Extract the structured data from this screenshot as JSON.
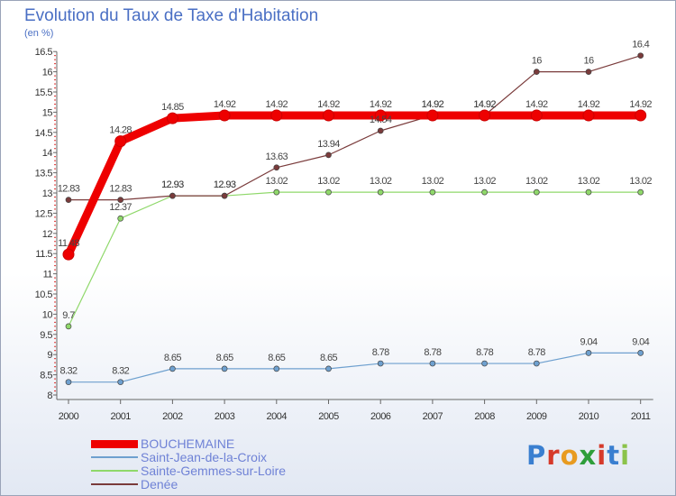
{
  "title": "Evolution du Taux de Taxe d'Habitation",
  "unit": "(en %)",
  "logo": {
    "text": "Proxiti",
    "letter_colors": [
      "#3a7fd0",
      "#d63a2a",
      "#e89b20",
      "#2e9e3a",
      "#d63a2a",
      "#3a7fd0",
      "#8bc34a"
    ]
  },
  "chart_data": {
    "type": "line",
    "title": "Evolution du Taux de Taxe d'Habitation",
    "ylabel": "(en %)",
    "xlabel": "",
    "ylim": [
      8,
      16.5
    ],
    "yticks": [
      "8",
      "8.5",
      "9",
      "9.5",
      "10",
      "10.5",
      "11",
      "11.5",
      "12",
      "12.5",
      "13",
      "13.5",
      "14",
      "14.5",
      "15",
      "15.5",
      "16",
      "16.5"
    ],
    "x": [
      "2000",
      "2001",
      "2002",
      "2003",
      "2004",
      "2005",
      "2006",
      "2007",
      "2008",
      "2009",
      "2010",
      "2011"
    ],
    "grid": false,
    "series": [
      {
        "name": "BOUCHEMAINE",
        "color": "#ee0000",
        "width": 9,
        "marker": 6,
        "values": [
          11.48,
          14.28,
          14.85,
          14.92,
          14.92,
          14.92,
          14.92,
          14.92,
          14.92,
          14.92,
          14.92,
          14.92
        ],
        "labels": [
          "11.48",
          "14.28",
          "14.85",
          "14.92",
          "14.92",
          "14.92",
          "14.92",
          "14.92",
          "14.92",
          "14.92",
          "14.92",
          "14.92"
        ]
      },
      {
        "name": "Saint-Jean-de-la-Croix",
        "color": "#6ea0cf",
        "width": 1.2,
        "marker": 3,
        "values": [
          8.32,
          8.32,
          8.65,
          8.65,
          8.65,
          8.65,
          8.78,
          8.78,
          8.78,
          8.78,
          9.04,
          9.04
        ],
        "labels": [
          "8.32",
          "8.32",
          "8.65",
          "8.65",
          "8.65",
          "8.65",
          "8.78",
          "8.78",
          "8.78",
          "8.78",
          "9.04",
          "9.04"
        ]
      },
      {
        "name": "Sainte-Gemmes-sur-Loire",
        "color": "#8fd86a",
        "width": 1.2,
        "marker": 3,
        "values": [
          9.7,
          12.37,
          12.93,
          12.93,
          13.02,
          13.02,
          13.02,
          13.02,
          13.02,
          13.02,
          13.02,
          13.02
        ],
        "labels": [
          "9.7",
          "12.37",
          "12.93",
          "12.93",
          "13.02",
          "13.02",
          "13.02",
          "13.02",
          "13.02",
          "13.02",
          "13.02",
          "13.02"
        ]
      },
      {
        "name": "Denée",
        "color": "#7a3b3b",
        "width": 1.2,
        "marker": 3,
        "values": [
          12.83,
          12.83,
          12.93,
          12.93,
          13.63,
          13.94,
          14.54,
          14.92,
          14.92,
          16,
          16,
          16.4
        ],
        "labels": [
          "12.83",
          "12.83",
          "12.93",
          "12.93",
          "13.63",
          "13.94",
          "14.54",
          "14.92",
          "14.92",
          "16",
          "16",
          "16.4"
        ]
      }
    ]
  }
}
